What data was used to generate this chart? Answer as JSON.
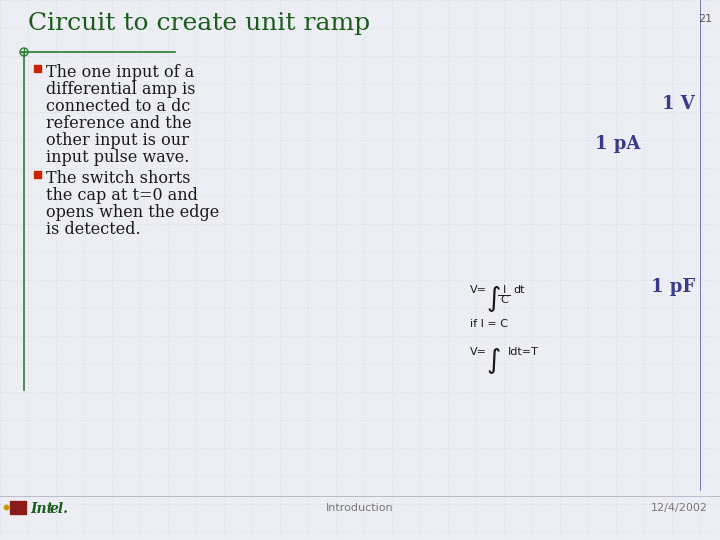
{
  "title": "Circuit to create unit ramp",
  "slide_number": "21",
  "background_color": "#eceef4",
  "grid_color": "#c8cce0",
  "title_color": "#1a5c1a",
  "title_fontsize": 18,
  "bullet_color": "#cc2200",
  "text_color": "#1a1a1a",
  "text_fontsize": 11.5,
  "bullet1_lines": [
    "The one input of a",
    "differential amp is",
    "connected to a dc",
    "reference and the",
    "other input is our",
    "input pulse wave."
  ],
  "bullet2_lines": [
    "The switch shorts",
    "the cap at t=0 and",
    "opens when the edge",
    "is detected."
  ],
  "label_1V": "1 V",
  "label_1pA": "1 pA",
  "label_1pF": "1 pF",
  "label_color": "#3a3a8c",
  "label_fontsize": 13,
  "eq_color": "#1a1a1a",
  "eq_fontsize": 8,
  "footer_left": "Introduction",
  "footer_right": "12/4/2002",
  "footer_color": "#777777",
  "footer_fontsize": 8,
  "green_color": "#2e7d32",
  "slide_num_color": "#555555",
  "slide_num_fontsize": 8
}
